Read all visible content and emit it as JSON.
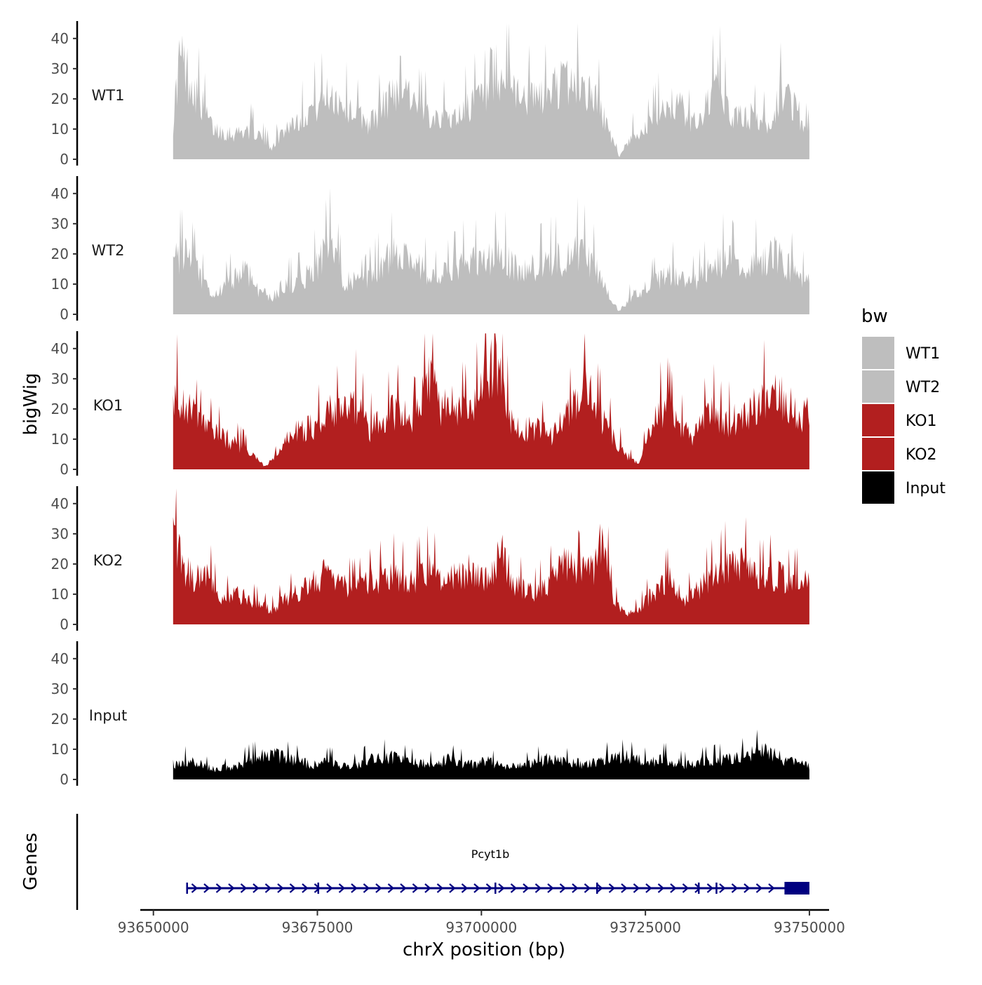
{
  "chart_data": {
    "type": "area",
    "y_axis_title": "bigWig",
    "genes_axis_title": "Genes",
    "x_axis_title": "chrX position (bp)",
    "x_range": [
      93653000,
      93750000
    ],
    "x_axis_limits": [
      93648000,
      93753000
    ],
    "x_ticks": [
      93650000,
      93675000,
      93700000,
      93725000,
      93750000
    ],
    "x_tick_labels": [
      "93650000",
      "93675000",
      "93700000",
      "93725000",
      "93750000"
    ],
    "y_range": [
      0,
      46
    ],
    "y_ticks": [
      0,
      10,
      20,
      30,
      40
    ],
    "y_tick_labels": [
      "0",
      "10",
      "20",
      "30",
      "40"
    ],
    "tracks": [
      {
        "name": "WT1",
        "color": "#bebebe",
        "profile": [
          [
            93653000,
            14
          ],
          [
            93654000,
            40
          ],
          [
            93655500,
            32
          ],
          [
            93657000,
            24
          ],
          [
            93659000,
            12
          ],
          [
            93662000,
            10
          ],
          [
            93665000,
            12
          ],
          [
            93668000,
            5
          ],
          [
            93670000,
            12
          ],
          [
            93673000,
            18
          ],
          [
            93675000,
            22
          ],
          [
            93677000,
            26
          ],
          [
            93680000,
            20
          ],
          [
            93683000,
            14
          ],
          [
            93686000,
            24
          ],
          [
            93688000,
            33
          ],
          [
            93690000,
            20
          ],
          [
            93693000,
            18
          ],
          [
            93696000,
            16
          ],
          [
            93698000,
            22
          ],
          [
            93700000,
            24
          ],
          [
            93702000,
            24
          ],
          [
            93704000,
            33
          ],
          [
            93706000,
            25
          ],
          [
            93709000,
            24
          ],
          [
            93712000,
            30
          ],
          [
            93715000,
            30
          ],
          [
            93718000,
            22
          ],
          [
            93719500,
            10
          ],
          [
            93721000,
            1
          ],
          [
            93723000,
            10
          ],
          [
            93725000,
            12
          ],
          [
            93728000,
            22
          ],
          [
            93730000,
            22
          ],
          [
            93732000,
            14
          ],
          [
            93734000,
            19
          ],
          [
            93736000,
            32
          ],
          [
            93738000,
            16
          ],
          [
            93741000,
            17
          ],
          [
            93744000,
            14
          ],
          [
            93746000,
            28
          ],
          [
            93748000,
            20
          ],
          [
            93750000,
            10
          ]
        ]
      },
      {
        "name": "WT2",
        "color": "#bebebe",
        "profile": [
          [
            93653000,
            21
          ],
          [
            93655000,
            24
          ],
          [
            93657000,
            16
          ],
          [
            93659000,
            6
          ],
          [
            93662000,
            14
          ],
          [
            93664000,
            18
          ],
          [
            93666000,
            10
          ],
          [
            93668000,
            6
          ],
          [
            93670000,
            12
          ],
          [
            93673000,
            14
          ],
          [
            93675000,
            20
          ],
          [
            93677000,
            28
          ],
          [
            93679000,
            14
          ],
          [
            93682000,
            12
          ],
          [
            93685000,
            20
          ],
          [
            93688000,
            26
          ],
          [
            93690000,
            20
          ],
          [
            93693000,
            14
          ],
          [
            93696000,
            18
          ],
          [
            93698000,
            22
          ],
          [
            93700000,
            20
          ],
          [
            93703000,
            24
          ],
          [
            93706000,
            16
          ],
          [
            93709000,
            20
          ],
          [
            93712000,
            22
          ],
          [
            93715000,
            26
          ],
          [
            93717000,
            20
          ],
          [
            93719500,
            8
          ],
          [
            93721000,
            1
          ],
          [
            93723000,
            8
          ],
          [
            93726000,
            12
          ],
          [
            93729000,
            16
          ],
          [
            93732000,
            12
          ],
          [
            93735000,
            18
          ],
          [
            93737000,
            22
          ],
          [
            93740000,
            18
          ],
          [
            93743000,
            22
          ],
          [
            93745000,
            24
          ],
          [
            93748000,
            16
          ],
          [
            93750000,
            12
          ]
        ]
      },
      {
        "name": "KO1",
        "color": "#b21f1f",
        "profile": [
          [
            93653000,
            31
          ],
          [
            93655000,
            26
          ],
          [
            93657000,
            18
          ],
          [
            93660000,
            14
          ],
          [
            93663000,
            10
          ],
          [
            93665000,
            6
          ],
          [
            93667000,
            1
          ],
          [
            93669000,
            6
          ],
          [
            93671000,
            14
          ],
          [
            93673000,
            16
          ],
          [
            93675000,
            18
          ],
          [
            93677000,
            24
          ],
          [
            93679000,
            22
          ],
          [
            93681000,
            26
          ],
          [
            93683000,
            16
          ],
          [
            93686000,
            22
          ],
          [
            93688000,
            24
          ],
          [
            93690000,
            20
          ],
          [
            93692000,
            38
          ],
          [
            93694000,
            24
          ],
          [
            93696000,
            26
          ],
          [
            93698000,
            22
          ],
          [
            93700000,
            30
          ],
          [
            93702000,
            44
          ],
          [
            93703500,
            30
          ],
          [
            93705000,
            16
          ],
          [
            93708000,
            16
          ],
          [
            93711000,
            14
          ],
          [
            93714000,
            24
          ],
          [
            93716000,
            33
          ],
          [
            93718000,
            22
          ],
          [
            93720000,
            14
          ],
          [
            93722000,
            6
          ],
          [
            93724000,
            2
          ],
          [
            93726000,
            18
          ],
          [
            93728000,
            26
          ],
          [
            93730000,
            18
          ],
          [
            93732000,
            12
          ],
          [
            93735000,
            24
          ],
          [
            93737000,
            18
          ],
          [
            93740000,
            22
          ],
          [
            93743000,
            28
          ],
          [
            93745000,
            32
          ],
          [
            93747000,
            26
          ],
          [
            93749000,
            20
          ],
          [
            93750000,
            26
          ]
        ]
      },
      {
        "name": "KO2",
        "color": "#b21f1f",
        "profile": [
          [
            93653000,
            35
          ],
          [
            93654500,
            24
          ],
          [
            93656000,
            18
          ],
          [
            93658000,
            22
          ],
          [
            93660000,
            10
          ],
          [
            93663000,
            12
          ],
          [
            93666000,
            8
          ],
          [
            93668000,
            6
          ],
          [
            93670000,
            10
          ],
          [
            93673000,
            14
          ],
          [
            93676000,
            20
          ],
          [
            93678000,
            16
          ],
          [
            93681000,
            14
          ],
          [
            93684000,
            18
          ],
          [
            93687000,
            20
          ],
          [
            93689000,
            16
          ],
          [
            93692000,
            22
          ],
          [
            93694000,
            18
          ],
          [
            93697000,
            20
          ],
          [
            93699000,
            22
          ],
          [
            93701000,
            18
          ],
          [
            93703000,
            29
          ],
          [
            93705000,
            16
          ],
          [
            93708000,
            12
          ],
          [
            93711000,
            18
          ],
          [
            93713000,
            26
          ],
          [
            93715000,
            20
          ],
          [
            93717000,
            22
          ],
          [
            93718500,
            35
          ],
          [
            93720000,
            10
          ],
          [
            93722000,
            4
          ],
          [
            93724000,
            6
          ],
          [
            93726000,
            12
          ],
          [
            93729000,
            18
          ],
          [
            93731000,
            10
          ],
          [
            93734000,
            16
          ],
          [
            93737000,
            22
          ],
          [
            93740000,
            24
          ],
          [
            93742000,
            18
          ],
          [
            93745000,
            20
          ],
          [
            93747000,
            16
          ],
          [
            93750000,
            18
          ]
        ]
      },
      {
        "name": "Input",
        "color": "#000000",
        "profile": [
          [
            93653000,
            6
          ],
          [
            93656000,
            8
          ],
          [
            93659000,
            4
          ],
          [
            93662000,
            5
          ],
          [
            93665000,
            8
          ],
          [
            93668000,
            10
          ],
          [
            93671000,
            8
          ],
          [
            93674000,
            6
          ],
          [
            93677000,
            7
          ],
          [
            93680000,
            5
          ],
          [
            93683000,
            8
          ],
          [
            93686000,
            9
          ],
          [
            93689000,
            7
          ],
          [
            93692000,
            6
          ],
          [
            93695000,
            8
          ],
          [
            93698000,
            6
          ],
          [
            93701000,
            7
          ],
          [
            93704000,
            5
          ],
          [
            93707000,
            6
          ],
          [
            93710000,
            8
          ],
          [
            93713000,
            7
          ],
          [
            93716000,
            6
          ],
          [
            93719000,
            8
          ],
          [
            93722000,
            9
          ],
          [
            93725000,
            7
          ],
          [
            93728000,
            8
          ],
          [
            93731000,
            6
          ],
          [
            93734000,
            7
          ],
          [
            93737000,
            8
          ],
          [
            93740000,
            9
          ],
          [
            93743000,
            12
          ],
          [
            93746000,
            8
          ],
          [
            93750000,
            5
          ]
        ]
      }
    ],
    "legend": {
      "title": "bw",
      "position": "right",
      "items": [
        {
          "label": "WT1",
          "color": "#bebebe"
        },
        {
          "label": "WT2",
          "color": "#bebebe"
        },
        {
          "label": "KO1",
          "color": "#b21f1f"
        },
        {
          "label": "KO2",
          "color": "#b21f1f"
        },
        {
          "label": "Input",
          "color": "#000000"
        }
      ]
    },
    "gene": {
      "name": "Pcyt1b",
      "color": "#000080",
      "strand": "+",
      "start": 93655000,
      "end": 93750000,
      "exons": [
        [
          93655000,
          93655400
        ],
        [
          93675000,
          93675300
        ],
        [
          93702000,
          93702200
        ],
        [
          93717500,
          93717800
        ],
        [
          93733000,
          93733300
        ],
        [
          93735700,
          93736000
        ],
        [
          93746200,
          93750000
        ]
      ]
    }
  }
}
